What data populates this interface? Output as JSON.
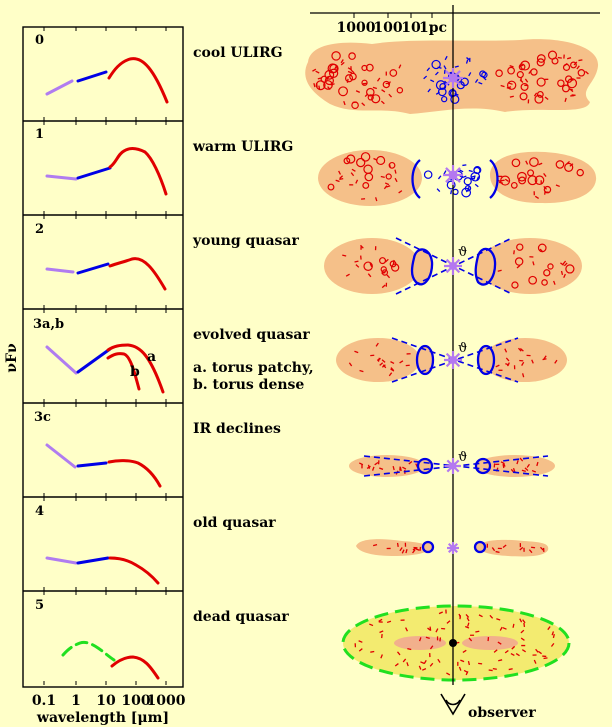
{
  "yaxis_label": "νFν",
  "xaxis_label": "wavelength [μm]",
  "xticks": [
    "0.1",
    "1",
    "10",
    "100",
    "1000"
  ],
  "scale_ticks": [
    "1000",
    "100",
    "10",
    "1pc"
  ],
  "observer_label": "observer",
  "stages": [
    {
      "num": "0",
      "title": "cool ULIRG"
    },
    {
      "num": "1",
      "title": "warm ULIRG"
    },
    {
      "num": "2",
      "title": "young quasar"
    },
    {
      "num": "3a,b",
      "title": "evolved quasar",
      "note1": "a. torus patchy,",
      "note2": "b. torus dense",
      "curve_a": "a",
      "curve_b": "b"
    },
    {
      "num": "3c",
      "title": "IR declines"
    },
    {
      "num": "4",
      "title": "old quasar"
    },
    {
      "num": "5",
      "title": "dead quasar"
    }
  ],
  "angle_symbol": "ϑ",
  "colors": {
    "background": "#ffffc8",
    "dust": "#f5c089",
    "red": "#e00000",
    "blue": "#0000e6",
    "lilac": "#b07cf0",
    "star": "#b478f0",
    "green": "#20e020",
    "yellow_gas": "#f3eb70"
  }
}
